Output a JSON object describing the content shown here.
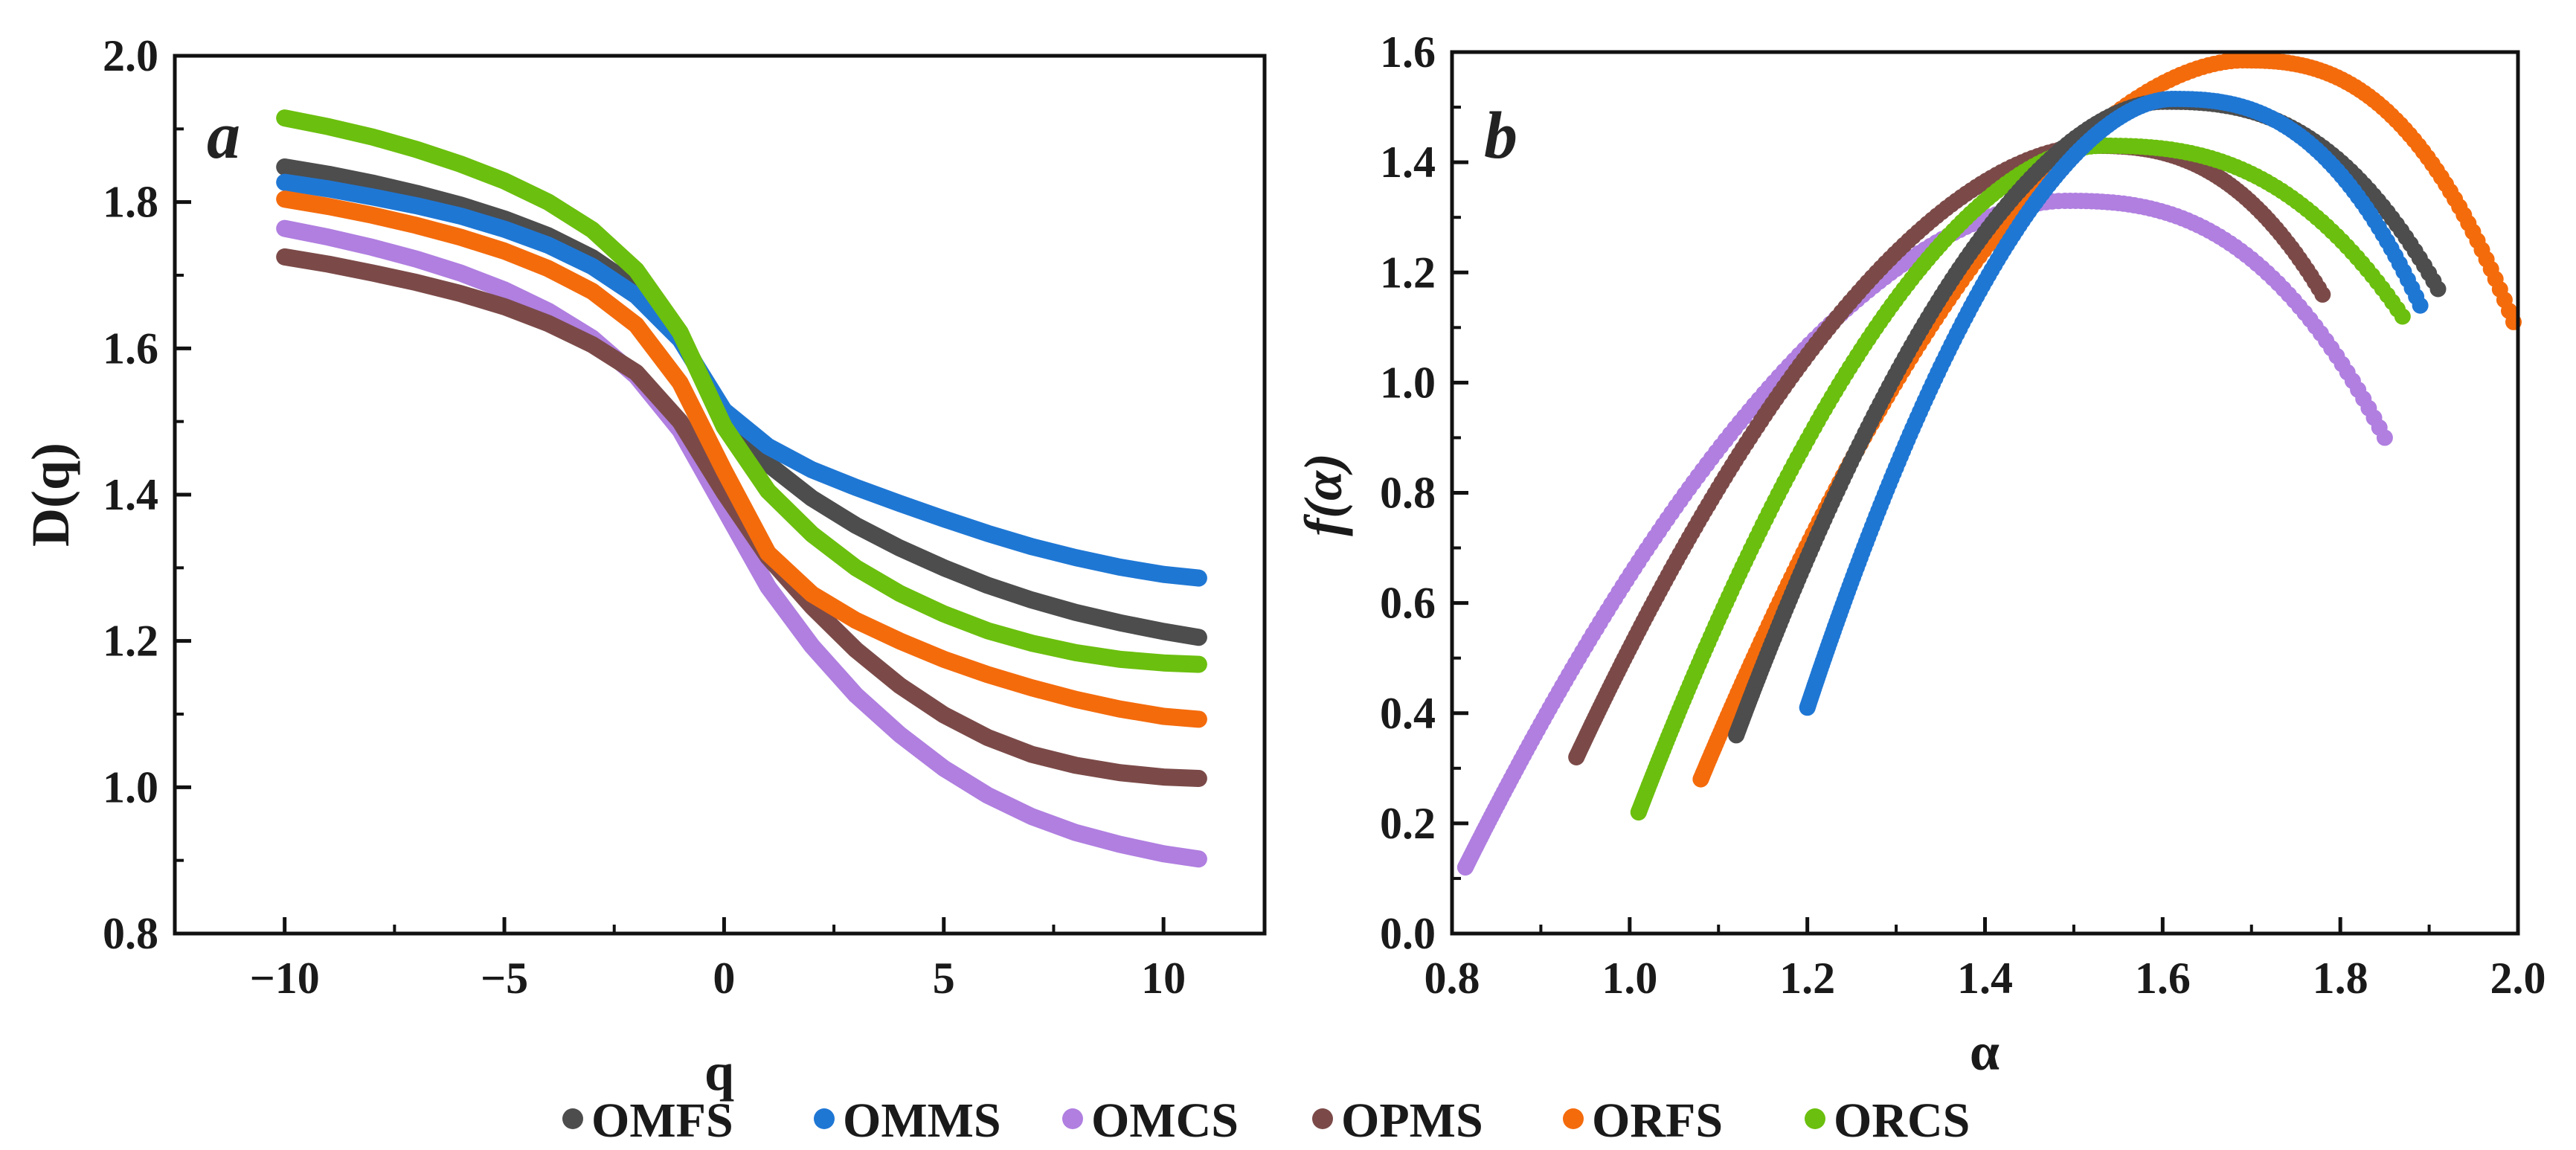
{
  "legend": [
    {
      "name": "OMFS",
      "color": "#4d4d4d"
    },
    {
      "name": "OMMS",
      "color": "#1f77d4"
    },
    {
      "name": "OMCS",
      "color": "#b07fe0"
    },
    {
      "name": "OPMS",
      "color": "#7b4a48"
    },
    {
      "name": "ORFS",
      "color": "#f46b0c"
    },
    {
      "name": "ORCS",
      "color": "#6bbf0e"
    }
  ],
  "chart_data": [
    {
      "type": "line",
      "panel_label": "a",
      "xlabel": "q",
      "ylabel": "D(q)",
      "xlim": [
        -12.5,
        12.3
      ],
      "ylim": [
        0.8,
        2.0
      ],
      "xticks": [
        -10,
        -5,
        0,
        5,
        10
      ],
      "xtick_labels": [
        "−10",
        "−5",
        "0",
        "5",
        "10"
      ],
      "yticks": [
        0.8,
        1.0,
        1.2,
        1.4,
        1.6,
        1.8,
        2.0
      ],
      "ytick_labels": [
        "0.8",
        "1.0",
        "1.2",
        "1.4",
        "1.6",
        "1.8",
        "2.0"
      ],
      "x": [
        -10,
        -9,
        -8,
        -7,
        -6,
        -5,
        -4,
        -3,
        -2,
        -1,
        0,
        1,
        2,
        3,
        4,
        5,
        6,
        7,
        8,
        9,
        10,
        10.8
      ],
      "series": [
        {
          "name": "OMFS",
          "color": "#4d4d4d",
          "values": [
            1.848,
            1.838,
            1.826,
            1.812,
            1.796,
            1.777,
            1.754,
            1.724,
            1.683,
            1.617,
            1.505,
            1.442,
            1.395,
            1.358,
            1.327,
            1.3,
            1.276,
            1.256,
            1.239,
            1.225,
            1.213,
            1.205
          ]
        },
        {
          "name": "OMMS",
          "color": "#1f77d4",
          "values": [
            1.827,
            1.818,
            1.807,
            1.795,
            1.781,
            1.763,
            1.741,
            1.712,
            1.672,
            1.612,
            1.515,
            1.466,
            1.434,
            1.41,
            1.388,
            1.367,
            1.347,
            1.329,
            1.314,
            1.301,
            1.291,
            1.286
          ]
        },
        {
          "name": "OMCS",
          "color": "#b07fe0",
          "values": [
            1.764,
            1.752,
            1.738,
            1.722,
            1.703,
            1.68,
            1.651,
            1.614,
            1.562,
            1.488,
            1.381,
            1.274,
            1.193,
            1.126,
            1.072,
            1.026,
            0.989,
            0.96,
            0.938,
            0.922,
            0.909,
            0.902
          ]
        },
        {
          "name": "OPMS",
          "color": "#7b4a48",
          "values": [
            1.725,
            1.715,
            1.703,
            1.69,
            1.675,
            1.657,
            1.634,
            1.605,
            1.567,
            1.5,
            1.403,
            1.315,
            1.247,
            1.188,
            1.139,
            1.099,
            1.068,
            1.045,
            1.03,
            1.02,
            1.014,
            1.012
          ]
        },
        {
          "name": "ORFS",
          "color": "#f46b0c",
          "values": [
            1.804,
            1.794,
            1.782,
            1.768,
            1.752,
            1.733,
            1.709,
            1.678,
            1.632,
            1.553,
            1.433,
            1.32,
            1.264,
            1.228,
            1.2,
            1.175,
            1.154,
            1.136,
            1.12,
            1.107,
            1.097,
            1.093
          ]
        },
        {
          "name": "ORCS",
          "color": "#6bbf0e",
          "values": [
            1.915,
            1.903,
            1.889,
            1.872,
            1.852,
            1.829,
            1.8,
            1.762,
            1.707,
            1.622,
            1.493,
            1.405,
            1.346,
            1.3,
            1.265,
            1.237,
            1.214,
            1.197,
            1.184,
            1.175,
            1.17,
            1.168
          ]
        }
      ]
    },
    {
      "type": "scatter",
      "panel_label": "b",
      "xlabel": "α",
      "ylabel": "f(α)",
      "xlim": [
        0.8,
        2.0
      ],
      "ylim": [
        0.0,
        1.6
      ],
      "xticks": [
        0.8,
        1.0,
        1.2,
        1.4,
        1.6,
        1.8,
        2.0
      ],
      "xtick_labels": [
        "0.8",
        "1.0",
        "1.2",
        "1.4",
        "1.6",
        "1.8",
        "2.0"
      ],
      "yticks": [
        0.0,
        0.2,
        0.4,
        0.6,
        0.8,
        1.0,
        1.2,
        1.4,
        1.6
      ],
      "ytick_labels": [
        "0.0",
        "0.2",
        "0.4",
        "0.6",
        "0.8",
        "1.0",
        "1.2",
        "1.4",
        "1.6"
      ],
      "series": [
        {
          "name": "OMCS",
          "color": "#b07fe0",
          "alpha_min": 0.815,
          "alpha_min_f": 0.12,
          "alpha_peak": 1.49,
          "f_peak": 1.33,
          "alpha_max": 1.85,
          "alpha_max_f": 0.9
        },
        {
          "name": "OPMS",
          "color": "#7b4a48",
          "alpha_min": 0.94,
          "alpha_min_f": 0.32,
          "alpha_peak": 1.52,
          "f_peak": 1.43,
          "alpha_max": 1.78,
          "alpha_max_f": 1.16
        },
        {
          "name": "ORCS",
          "color": "#6bbf0e",
          "alpha_min": 1.01,
          "alpha_min_f": 0.22,
          "alpha_peak": 1.53,
          "f_peak": 1.43,
          "alpha_max": 1.87,
          "alpha_max_f": 1.12
        },
        {
          "name": "ORFS",
          "color": "#f46b0c",
          "alpha_min": 1.08,
          "alpha_min_f": 0.28,
          "alpha_peak": 1.69,
          "f_peak": 1.585,
          "alpha_max": 1.995,
          "alpha_max_f": 1.11
        },
        {
          "name": "OMFS",
          "color": "#4d4d4d",
          "alpha_min": 1.12,
          "alpha_min_f": 0.36,
          "alpha_peak": 1.6,
          "f_peak": 1.51,
          "alpha_max": 1.91,
          "alpha_max_f": 1.17
        },
        {
          "name": "OMMS",
          "color": "#1f77d4",
          "alpha_min": 1.2,
          "alpha_min_f": 0.41,
          "alpha_peak": 1.61,
          "f_peak": 1.515,
          "alpha_max": 1.89,
          "alpha_max_f": 1.14
        }
      ]
    }
  ]
}
